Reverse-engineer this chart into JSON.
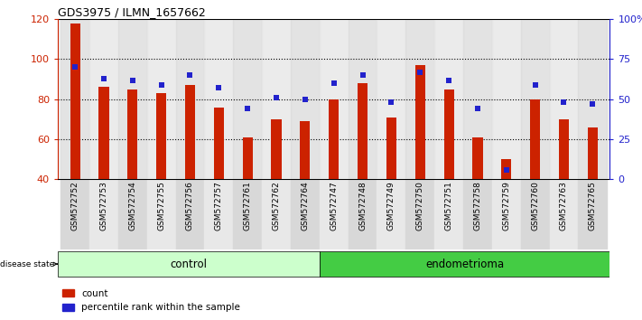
{
  "title": "GDS3975 / ILMN_1657662",
  "samples": [
    "GSM572752",
    "GSM572753",
    "GSM572754",
    "GSM572755",
    "GSM572756",
    "GSM572757",
    "GSM572761",
    "GSM572762",
    "GSM572764",
    "GSM572747",
    "GSM572748",
    "GSM572749",
    "GSM572750",
    "GSM572751",
    "GSM572758",
    "GSM572759",
    "GSM572760",
    "GSM572763",
    "GSM572765"
  ],
  "counts": [
    118,
    86,
    85,
    83,
    87,
    76,
    61,
    70,
    69,
    80,
    88,
    71,
    97,
    85,
    61,
    50,
    80,
    70,
    66
  ],
  "percentiles": [
    70,
    63,
    62,
    59,
    65,
    57,
    44,
    51,
    50,
    60,
    65,
    48,
    67,
    62,
    44,
    6,
    59,
    48,
    47
  ],
  "groups": [
    "control",
    "control",
    "control",
    "control",
    "control",
    "control",
    "control",
    "control",
    "control",
    "endometrioma",
    "endometrioma",
    "endometrioma",
    "endometrioma",
    "endometrioma",
    "endometrioma",
    "endometrioma",
    "endometrioma",
    "endometrioma",
    "endometrioma"
  ],
  "ylim_left": [
    40,
    120
  ],
  "ylim_right": [
    0,
    100
  ],
  "yticks_left": [
    40,
    60,
    80,
    100,
    120
  ],
  "yticks_right": [
    0,
    25,
    50,
    75,
    100
  ],
  "bar_color": "#cc2200",
  "dot_color": "#2222cc",
  "control_color": "#ccffcc",
  "endometrioma_color": "#44cc44",
  "baseline": 40,
  "bar_width": 0.35
}
